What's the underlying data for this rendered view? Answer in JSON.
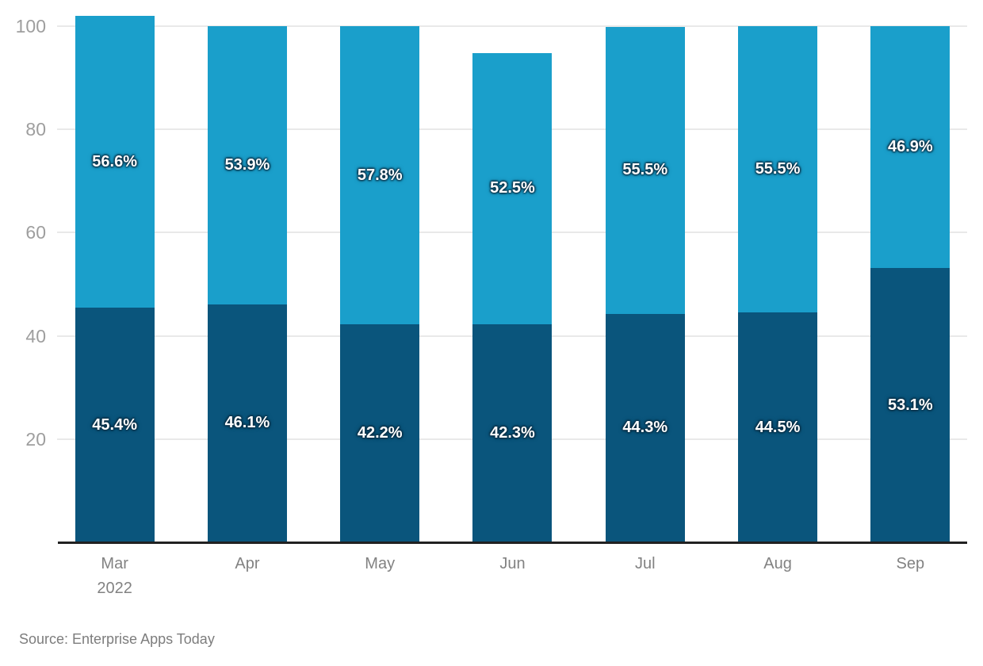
{
  "chart_data": {
    "type": "bar",
    "stacked": true,
    "title": "",
    "xlabel": "",
    "ylabel": "",
    "legend": false,
    "grid": true,
    "ylim": [
      0,
      100
    ],
    "yticks": [
      20,
      40,
      60,
      80,
      100
    ],
    "categories": [
      "Mar",
      "Apr",
      "May",
      "Jun",
      "Jul",
      "Aug",
      "Sep"
    ],
    "category_sublabels": [
      "2022",
      "",
      "",
      "",
      "",
      "",
      ""
    ],
    "value_label_suffix": "%",
    "series": [
      {
        "name": "bottom-dark-blue-segment",
        "color": "#0A557C",
        "values": [
          45.4,
          46.1,
          42.2,
          42.3,
          44.3,
          44.5,
          53.1
        ]
      },
      {
        "name": "top-light-blue-segment",
        "color": "#1A9FCB",
        "values": [
          56.6,
          53.9,
          57.8,
          52.5,
          55.5,
          55.5,
          46.9
        ]
      }
    ]
  },
  "source_note": "Source: Enterprise Apps Today",
  "colors": {
    "grid": "#E9E9E9",
    "axis_line": "#212121",
    "y_tick_text": "#9E9E9E",
    "x_tick_text": "#828282",
    "source_text": "#7D7D7D",
    "bar_label_text": "#FFFFFF"
  }
}
